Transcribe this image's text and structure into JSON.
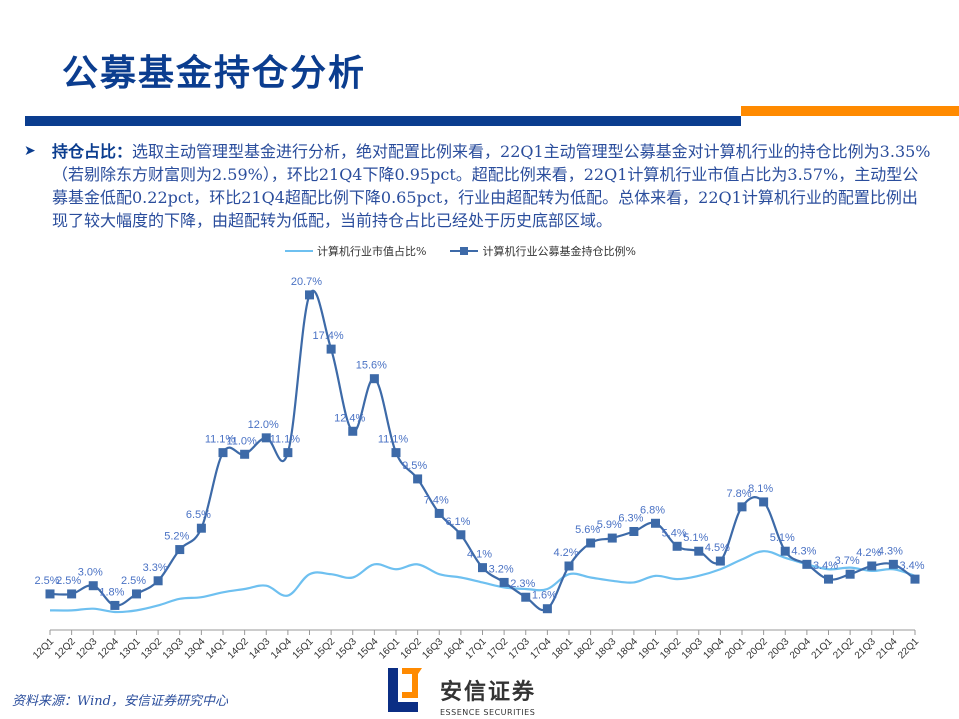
{
  "header": {
    "title": "公募基金持仓分析",
    "accent_blue": "#0b3d8f",
    "accent_orange": "#ff8a00"
  },
  "bullet": {
    "lead": "持仓占比：",
    "text": "选取主动管理型基金进行分析，绝对配置比例来看，22Q1主动管理型公募基金对计算机行业的持仓比例为3.35%（若剔除东方财富则为2.59%），环比21Q4下降0.95pct。超配比例来看，22Q1计算机行业市值占比为3.57%，主动型公募基金低配0.22pct，环比21Q4超配比例下降0.65pct，行业由超配转为低配。总体来看，22Q1计算机行业的配置比例出现了较大幅度的下降，由超配转为低配，当前持仓占比已经处于历史底部区域。"
  },
  "legend": {
    "series1": "计算机行业市值占比%",
    "series2": "计算机行业公募基金持仓比例%"
  },
  "footer": {
    "source": "资料来源：Wind，安信证券研究中心",
    "logo_cn": "安信证券",
    "logo_en": "ESSENCE SECURITIES"
  },
  "chart_data": {
    "type": "line",
    "title": "",
    "xlabel": "",
    "ylabel": "",
    "grid": false,
    "legend_position": "top",
    "categories": [
      "12Q1",
      "12Q2",
      "12Q3",
      "12Q4",
      "13Q1",
      "13Q2",
      "13Q3",
      "13Q4",
      "14Q1",
      "14Q2",
      "14Q3",
      "14Q4",
      "15Q1",
      "15Q2",
      "15Q3",
      "15Q4",
      "16Q1",
      "16Q2",
      "16Q3",
      "16Q4",
      "17Q1",
      "17Q2",
      "17Q3",
      "17Q4",
      "18Q1",
      "18Q2",
      "18Q3",
      "18Q4",
      "19Q1",
      "19Q2",
      "19Q3",
      "19Q4",
      "20Q1",
      "20Q2",
      "20Q3",
      "20Q4",
      "21Q1",
      "21Q2",
      "21Q3",
      "21Q4",
      "22Q1"
    ],
    "series": [
      {
        "name": "计算机行业市值占比%",
        "color": "#6ec0f0",
        "labels_shown": false,
        "values": [
          1.5,
          1.5,
          1.6,
          1.4,
          1.5,
          1.8,
          2.2,
          2.3,
          2.6,
          2.8,
          3.0,
          2.4,
          3.7,
          3.7,
          3.5,
          4.3,
          4.0,
          4.3,
          3.7,
          3.5,
          3.2,
          2.9,
          2.8,
          2.8,
          3.7,
          3.5,
          3.3,
          3.2,
          3.6,
          3.4,
          3.6,
          4.0,
          4.6,
          5.1,
          4.7,
          4.3,
          4.0,
          4.1,
          3.9,
          4.0,
          3.6
        ]
      },
      {
        "name": "计算机行业公募基金持仓比例%",
        "color": "#3d6aa8",
        "labels_shown": true,
        "values": [
          2.5,
          2.5,
          3.0,
          1.8,
          2.5,
          3.3,
          5.2,
          6.5,
          11.1,
          11.0,
          12.0,
          11.1,
          20.7,
          17.4,
          12.4,
          15.6,
          11.1,
          9.5,
          7.4,
          6.1,
          4.1,
          3.2,
          2.3,
          1.6,
          4.2,
          5.6,
          5.9,
          6.3,
          6.8,
          5.4,
          5.1,
          4.5,
          7.8,
          8.1,
          5.1,
          4.3,
          3.4,
          3.7,
          4.2,
          4.3,
          3.4
        ],
        "data_labels": [
          "2.5%",
          "2.5%",
          "3.0%",
          "1.8%",
          "2.5%",
          "3.3%",
          "5.2%",
          "6.5%",
          "11.1%",
          "11.0%",
          "12.0%",
          "11.1%",
          "20.7%",
          "17.4%",
          "12.4%",
          "15.6%",
          "11.1%",
          "9.5%",
          "7.4%",
          "6.1%",
          "4.1%",
          "3.2%",
          "2.3%",
          "1.6%",
          "4.2%",
          "5.6%",
          "5.9%",
          "6.3%",
          "6.8%",
          "5.4%",
          "5.1%",
          "4.5%",
          "7.8%",
          "8.1%",
          "5.1%",
          "4.3%",
          "3.4%",
          "3.7%",
          "4.2%",
          "4.3%",
          "3.4%"
        ]
      }
    ],
    "ylim": [
      0,
      22
    ]
  }
}
